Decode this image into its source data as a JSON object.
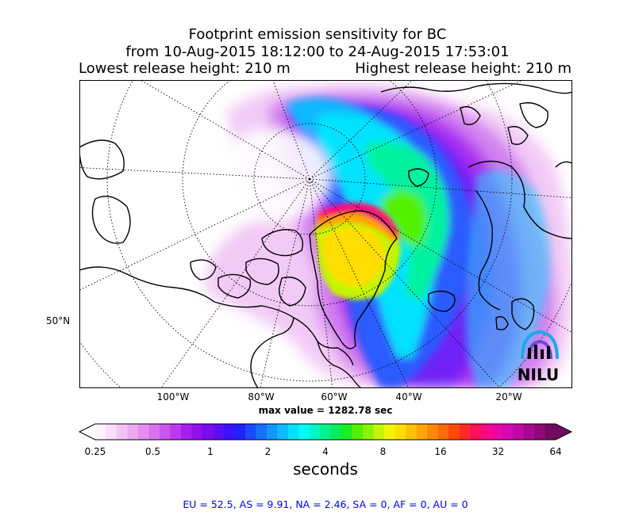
{
  "title": {
    "line1": "Footprint emission sensitivity for BC",
    "line2": "from 10-Aug-2015 18:12:00 to 24-Aug-2015 17:53:01",
    "lowest": "Lowest release height: 210 m",
    "highest": "Highest release height: 210 m"
  },
  "map": {
    "lat_labels": [
      "50°N"
    ],
    "lon_labels": [
      "100°W",
      "80°W",
      "60°W",
      "40°W",
      "20°W"
    ],
    "max_value": "max value = 1282.78 sec",
    "logo_text": "NILU",
    "projection": "north-polar-stereographic",
    "graticule": "dotted"
  },
  "colorbar": {
    "ticks": [
      "0.25",
      "0.5",
      "1",
      "2",
      "4",
      "8",
      "16",
      "32",
      "64"
    ],
    "label": "seconds",
    "colors": [
      "#fef3fe",
      "#f9ddf9",
      "#f3c4f3",
      "#ecabf0",
      "#e38ff0",
      "#d873f0",
      "#ca56ef",
      "#ba3af0",
      "#a81ef0",
      "#9410f0",
      "#7a0cf2",
      "#5e0ef6",
      "#3f10fb",
      "#2222ff",
      "#1b49ff",
      "#1670ff",
      "#1196ff",
      "#0bbcff",
      "#05dfff",
      "#00fbf3",
      "#00f6c2",
      "#00f28f",
      "#00ee5a",
      "#1aee25",
      "#52f000",
      "#8cf200",
      "#c4f500",
      "#f2f500",
      "#ffdd00",
      "#ffc200",
      "#ffa600",
      "#ff8a00",
      "#ff6a00",
      "#ff4b0a",
      "#ff2a2a",
      "#ff1159",
      "#f80a86",
      "#ea06a7",
      "#d606b2",
      "#c008a3",
      "#a8088f",
      "#8e0878",
      "#720a60"
    ]
  },
  "footer": "EU = 52.5,  AS = 9.91,  NA = 2.46,  SA = 0,  AF = 0,  AU = 0"
}
